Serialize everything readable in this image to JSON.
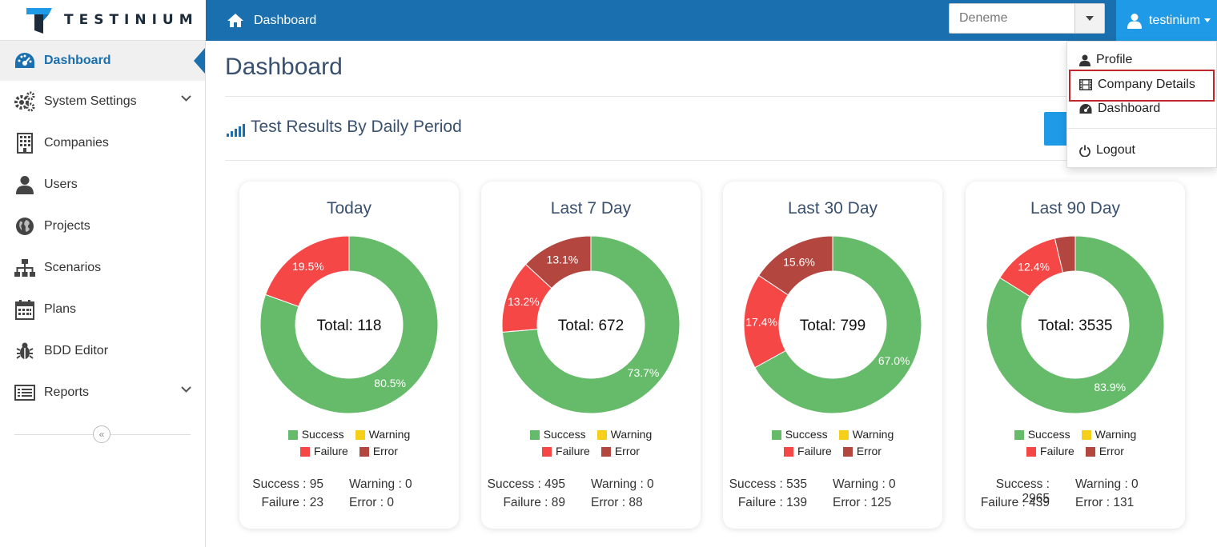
{
  "brand": {
    "name": "TESTINIUM"
  },
  "topbar": {
    "breadcrumb": "Dashboard",
    "project": "Deneme",
    "user": "testinium"
  },
  "sidebar": {
    "items": [
      {
        "label": "Dashboard",
        "icon": "dashboard-icon",
        "active": true
      },
      {
        "label": "System Settings",
        "icon": "gears-icon",
        "expandable": true
      },
      {
        "label": "Companies",
        "icon": "building-icon"
      },
      {
        "label": "Users",
        "icon": "user-icon"
      },
      {
        "label": "Projects",
        "icon": "globe-icon"
      },
      {
        "label": "Scenarios",
        "icon": "sitemap-icon"
      },
      {
        "label": "Plans",
        "icon": "calendar-icon"
      },
      {
        "label": "BDD Editor",
        "icon": "bug-icon"
      },
      {
        "label": "Reports",
        "icon": "list-icon",
        "expandable": true
      }
    ],
    "collapse_glyph": "«"
  },
  "main": {
    "title": "Dashboard",
    "section_title": "Test Results By Daily Period"
  },
  "legend": {
    "success": "Success",
    "warning": "Warning",
    "failure": "Failure",
    "error": "Error"
  },
  "colors": {
    "success": "#65bb69",
    "warning": "#f5cf1a",
    "failure": "#f64747",
    "error": "#b3463e",
    "header": "#1a6fae",
    "accent": "#1e9ae6"
  },
  "cards": [
    {
      "title": "Today",
      "total_text": "Total: 118",
      "labels": [
        "80.5%",
        "",
        "19.5%",
        ""
      ],
      "stats": {
        "success": "Success : 95",
        "warning": "Warning : 0",
        "failure": "Failure : 23",
        "error": "Error : 0"
      }
    },
    {
      "title": "Last 7 Day",
      "total_text": "Total: 672",
      "labels": [
        "73.7%",
        "",
        "13.2%",
        "13.1%"
      ],
      "stats": {
        "success": "Success : 495",
        "warning": "Warning : 0",
        "failure": "Failure : 89",
        "error": "Error : 88"
      }
    },
    {
      "title": "Last 30 Day",
      "total_text": "Total: 799",
      "labels": [
        "67.0%",
        "",
        "17.4%",
        "15.6%"
      ],
      "stats": {
        "success": "Success : 535",
        "warning": "Warning : 0",
        "failure": "Failure : 139",
        "error": "Error : 125"
      }
    },
    {
      "title": "Last 90 Day",
      "total_text": "Total: 3535",
      "labels": [
        "83.9%",
        "",
        "12.4%",
        ""
      ],
      "stats": {
        "success": "Success : 2965",
        "warning": "Warning : 0",
        "failure": "Failure : 439",
        "error": "Error : 131"
      }
    }
  ],
  "chart_data": [
    {
      "type": "pie",
      "title": "Today",
      "categories": [
        "Success",
        "Warning",
        "Failure",
        "Error"
      ],
      "values": [
        95,
        0,
        23,
        0
      ]
    },
    {
      "type": "pie",
      "title": "Last 7 Day",
      "categories": [
        "Success",
        "Warning",
        "Failure",
        "Error"
      ],
      "values": [
        495,
        0,
        89,
        88
      ]
    },
    {
      "type": "pie",
      "title": "Last 30 Day",
      "categories": [
        "Success",
        "Warning",
        "Failure",
        "Error"
      ],
      "values": [
        535,
        0,
        139,
        125
      ]
    },
    {
      "type": "pie",
      "title": "Last 90 Day",
      "categories": [
        "Success",
        "Warning",
        "Failure",
        "Error"
      ],
      "values": [
        2965,
        0,
        439,
        131
      ]
    }
  ],
  "dropdown": {
    "items": [
      {
        "label": "Profile",
        "icon": "user-icon"
      },
      {
        "label": "Company Details",
        "icon": "film-icon"
      },
      {
        "label": "Dashboard",
        "icon": "dashboard-icon"
      },
      {
        "label": "Logout",
        "icon": "power-icon"
      }
    ]
  }
}
